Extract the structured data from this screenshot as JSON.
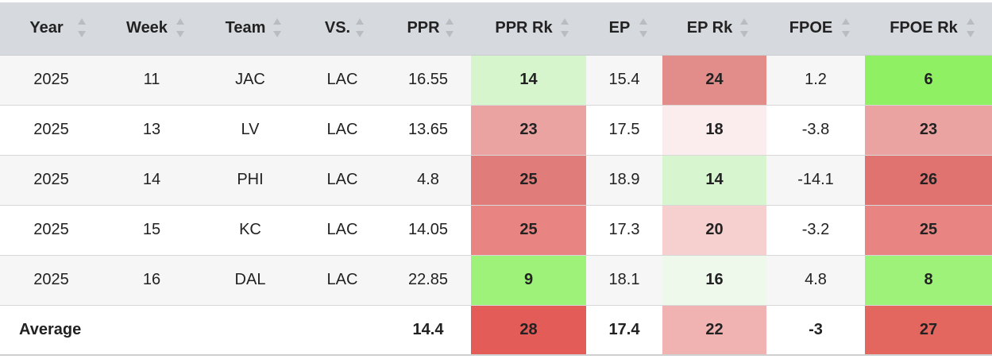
{
  "columns": [
    {
      "label": "Year",
      "name": "year",
      "align": "center"
    },
    {
      "label": "Week",
      "name": "week",
      "align": "center"
    },
    {
      "label": "Team",
      "name": "team",
      "align": "center"
    },
    {
      "label": "VS.",
      "name": "vs",
      "align": "center"
    },
    {
      "label": "PPR",
      "name": "ppr",
      "align": "center"
    },
    {
      "label": "PPR Rk",
      "name": "ppr-rk",
      "align": "center"
    },
    {
      "label": "EP",
      "name": "ep",
      "align": "center"
    },
    {
      "label": "EP Rk",
      "name": "ep-rk",
      "align": "center"
    },
    {
      "label": "FPOE",
      "name": "fpoe",
      "align": "center"
    },
    {
      "label": "FPOE Rk",
      "name": "fpoe-rk",
      "align": "center"
    }
  ],
  "rows": [
    {
      "cells": [
        "2025",
        "11",
        "JAC",
        "LAC",
        "16.55",
        "14",
        "15.4",
        "24",
        "1.2",
        "6"
      ],
      "colors": {
        "5": "#d6f5cc",
        "7": "#e38d8b",
        "9": "#8ff064"
      }
    },
    {
      "cells": [
        "2025",
        "13",
        "LV",
        "LAC",
        "13.65",
        "23",
        "17.5",
        "18",
        "-3.8",
        "23"
      ],
      "colors": {
        "5": "#eba3a1",
        "7": "#fbeced",
        "9": "#eba3a1"
      }
    },
    {
      "cells": [
        "2025",
        "14",
        "PHI",
        "LAC",
        "4.8",
        "25",
        "18.9",
        "14",
        "-14.1",
        "26"
      ],
      "colors": {
        "5": "#e07c79",
        "7": "#d7f5ce",
        "9": "#e0736f"
      }
    },
    {
      "cells": [
        "2025",
        "15",
        "KC",
        "LAC",
        "14.05",
        "25",
        "17.3",
        "20",
        "-3.2",
        "25"
      ],
      "colors": {
        "5": "#e88583",
        "7": "#f5d0cf",
        "9": "#e88583"
      }
    },
    {
      "cells": [
        "2025",
        "16",
        "DAL",
        "LAC",
        "22.85",
        "9",
        "18.1",
        "16",
        "4.8",
        "8"
      ],
      "colors": {
        "5": "#9ef27a",
        "7": "#eef9ec",
        "9": "#9ef27a"
      }
    }
  ],
  "average": {
    "label": "Average",
    "cells": [
      "",
      "",
      "",
      "",
      "14.4",
      "28",
      "17.4",
      "22",
      "-3",
      "27"
    ],
    "colors": {
      "5": "#e35c57",
      "7": "#f0b3b2",
      "9": "#e3675f"
    }
  },
  "sort_icon": "sort-arrows-icon"
}
